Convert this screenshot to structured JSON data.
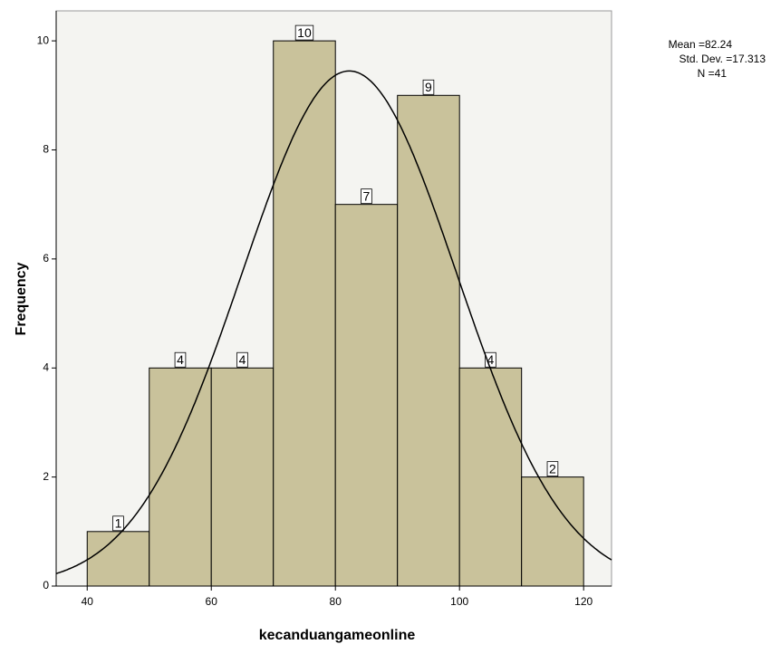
{
  "chart_data": {
    "type": "histogram",
    "x_label": "kecanduangameonline",
    "y_label": "Frequency",
    "bins": [
      40,
      50,
      60,
      70,
      80,
      90,
      100,
      110,
      120
    ],
    "counts": [
      1,
      4,
      4,
      10,
      7,
      9,
      4,
      2
    ],
    "color": "#c9c29b",
    "xlim": [
      35,
      124.5
    ],
    "xticks": [
      40,
      60,
      80,
      100,
      120
    ],
    "ylim": [
      0,
      10.55
    ],
    "yticks": [
      0,
      2,
      4,
      6,
      8,
      10
    ],
    "normal_curve": true,
    "mean_label": "Mean =",
    "mean": 82.24,
    "sd_label": "Std. Dev. =",
    "sd": 17.313,
    "n_label": "N =",
    "n": 41
  }
}
